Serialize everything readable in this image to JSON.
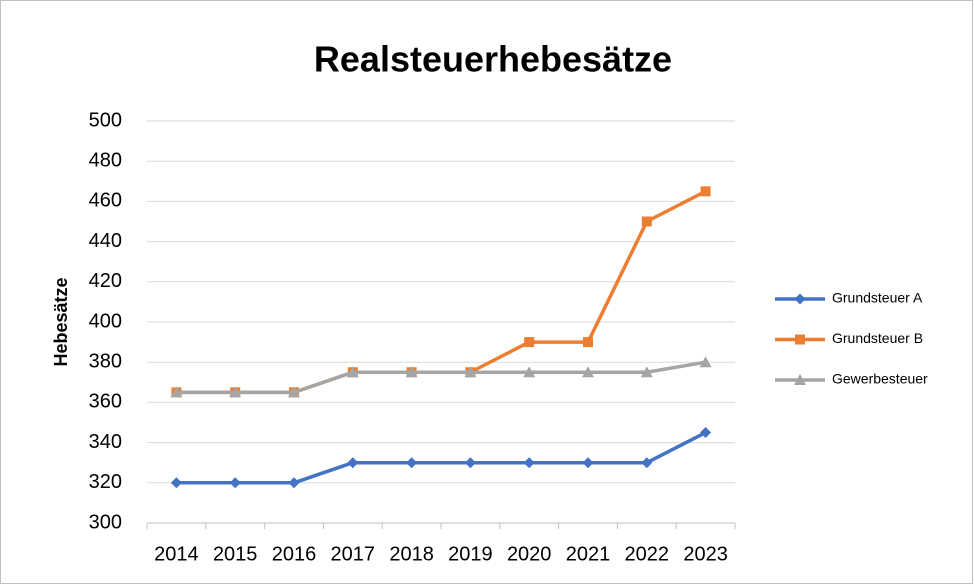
{
  "chart_data": {
    "type": "line",
    "title": "Realsteuerhebesätze",
    "y_label": "Hebesätze",
    "categories": [
      "2014",
      "2015",
      "2016",
      "2017",
      "2018",
      "2019",
      "2020",
      "2021",
      "2022",
      "2023"
    ],
    "series": [
      {
        "name": "Grundsteuer A",
        "color": "#4472c4",
        "marker": "diamond",
        "values": [
          320,
          320,
          320,
          330,
          330,
          330,
          330,
          330,
          330,
          345
        ]
      },
      {
        "name": "Grundsteuer B",
        "color": "#ed7d31",
        "marker": "square",
        "values": [
          365,
          365,
          365,
          375,
          375,
          375,
          390,
          390,
          450,
          465
        ]
      },
      {
        "name": "Gewerbesteuer",
        "color": "#a5a5a5",
        "marker": "triangle",
        "values": [
          365,
          365,
          365,
          375,
          375,
          375,
          375,
          375,
          375,
          380
        ]
      }
    ],
    "ylim": [
      300,
      500
    ],
    "yticks": [
      300,
      320,
      340,
      360,
      380,
      400,
      420,
      440,
      460,
      480,
      500
    ],
    "grid": true,
    "legend": "right"
  }
}
